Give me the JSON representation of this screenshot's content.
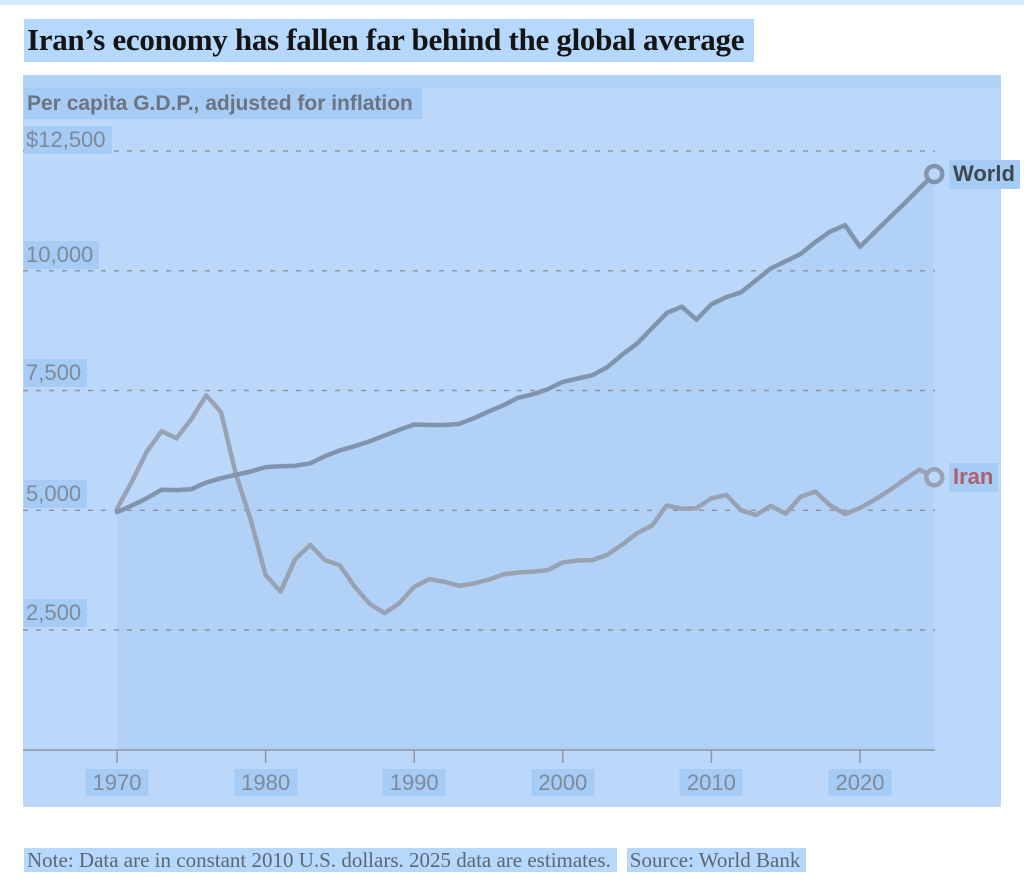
{
  "header": {
    "title": "Iran’s economy has fallen far behind the global average"
  },
  "chart": {
    "subtitle": "Per capita G.D.P., adjusted for inflation",
    "series_labels": {
      "world": "World",
      "iran": "Iran"
    }
  },
  "footer": {
    "note": "Note: Data are in constant 2010 U.S. dollars. 2025 data are estimates.",
    "source": "Source: World Bank"
  },
  "colors": {
    "title_color": "#141414",
    "subtitle_color": "#6b7480",
    "axis_label_color": "#7d8a99",
    "note_color": "#5d6773",
    "world_label_color": "#3e4850",
    "iran_label_color": "#ad5f6b",
    "world_line": "#8094ad",
    "iran_line": "#98a2b3",
    "area_fill": "#b1d1f6",
    "panel_bg": "#bbd8fb",
    "hl_white": "#b6d8fc",
    "hl_panel": "#a6cbf5",
    "strip_bg": "#d9e9fd",
    "strip2_bg": "#b2d3f8",
    "gridline_color": "#8a94a2",
    "axis_color": "#8d96a3"
  },
  "chart_data": {
    "type": "line",
    "title": "Iran’s economy has fallen far behind the global average",
    "subtitle": "Per capita G.D.P., adjusted for inflation",
    "unit": "constant 2010 U.S. dollars",
    "grid": "dashed-horizontal",
    "legend_position": "line-end-labels",
    "x": [
      1970,
      1971,
      1972,
      1973,
      1974,
      1975,
      1976,
      1977,
      1978,
      1979,
      1980,
      1981,
      1982,
      1983,
      1984,
      1985,
      1986,
      1987,
      1988,
      1989,
      1990,
      1991,
      1992,
      1993,
      1994,
      1995,
      1996,
      1997,
      1998,
      1999,
      2000,
      2001,
      2002,
      2003,
      2004,
      2005,
      2006,
      2007,
      2008,
      2009,
      2010,
      2011,
      2012,
      2013,
      2014,
      2015,
      2016,
      2017,
      2018,
      2019,
      2020,
      2021,
      2022,
      2023,
      2024,
      2025
    ],
    "series": [
      {
        "name": "World",
        "values": [
          4960,
          5100,
          5250,
          5430,
          5420,
          5440,
          5580,
          5670,
          5740,
          5810,
          5900,
          5920,
          5930,
          5980,
          6130,
          6250,
          6340,
          6440,
          6560,
          6680,
          6790,
          6780,
          6780,
          6800,
          6920,
          7060,
          7190,
          7350,
          7420,
          7530,
          7680,
          7750,
          7820,
          7990,
          8250,
          8480,
          8800,
          9120,
          9250,
          8980,
          9300,
          9450,
          9550,
          9800,
          10050,
          10200,
          10350,
          10600,
          10820,
          10950,
          10500,
          10810,
          11110,
          11410,
          11720,
          12020
        ]
      },
      {
        "name": "Iran",
        "values": [
          5030,
          5600,
          6220,
          6650,
          6500,
          6900,
          7400,
          7050,
          5750,
          4800,
          3650,
          3300,
          3980,
          4275,
          3960,
          3850,
          3400,
          3050,
          2850,
          3060,
          3400,
          3560,
          3510,
          3420,
          3470,
          3550,
          3660,
          3700,
          3720,
          3750,
          3910,
          3950,
          3960,
          4070,
          4280,
          4520,
          4680,
          5100,
          5030,
          5040,
          5250,
          5320,
          5000,
          4900,
          5090,
          4930,
          5280,
          5390,
          5100,
          4920,
          5050,
          5220,
          5420,
          5640,
          5850,
          5690
        ]
      }
    ],
    "x_axis": {
      "tick_values": [
        1970,
        1980,
        1990,
        2000,
        2010,
        2020
      ],
      "tick_labels": [
        "1970",
        "1980",
        "1990",
        "2000",
        "2010",
        "2020"
      ],
      "range": [
        1970,
        2025
      ]
    },
    "y_axis": {
      "tick_values": [
        12500,
        10000,
        7500,
        5000,
        2500
      ],
      "tick_labels": [
        "$12,500",
        "10,000",
        "7,500",
        "5,000",
        "2,500"
      ],
      "range": [
        1000,
        13500
      ]
    }
  }
}
